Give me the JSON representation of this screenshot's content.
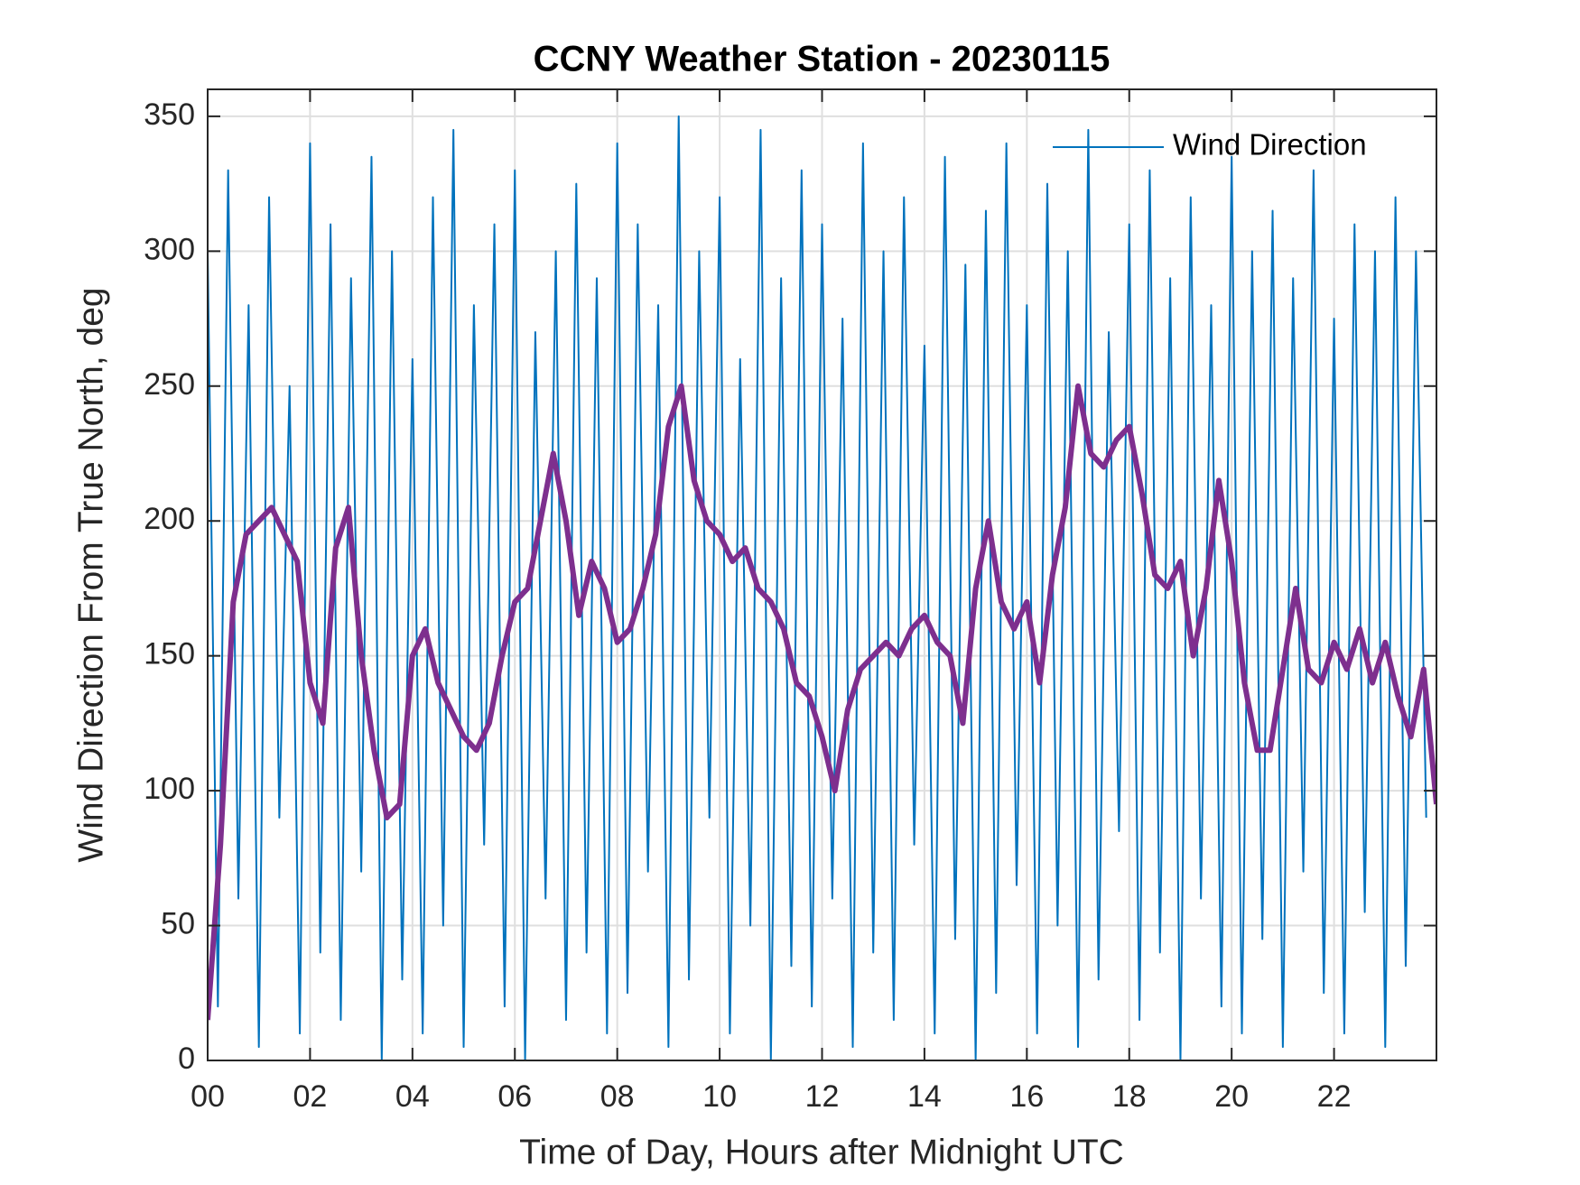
{
  "chart_data": {
    "type": "line",
    "title": "CCNY Weather Station - 20230115",
    "xlabel": "Time of Day, Hours after Midnight UTC",
    "ylabel": "Wind Direction From True North, deg",
    "xlim": [
      0,
      24
    ],
    "ylim": [
      0,
      360
    ],
    "xticks": [
      {
        "value": 0,
        "label": "00"
      },
      {
        "value": 2,
        "label": "02"
      },
      {
        "value": 4,
        "label": "04"
      },
      {
        "value": 6,
        "label": "06"
      },
      {
        "value": 8,
        "label": "08"
      },
      {
        "value": 10,
        "label": "10"
      },
      {
        "value": 12,
        "label": "12"
      },
      {
        "value": 14,
        "label": "14"
      },
      {
        "value": 16,
        "label": "16"
      },
      {
        "value": 18,
        "label": "18"
      },
      {
        "value": 20,
        "label": "20"
      },
      {
        "value": 22,
        "label": "22"
      }
    ],
    "yticks": [
      0,
      50,
      100,
      150,
      200,
      250,
      300,
      350
    ],
    "grid": true,
    "legend": "northeast",
    "series": [
      {
        "name": "Wind Direction",
        "color": "#0072bd",
        "width": 2,
        "x": [
          0,
          0.2,
          0.4,
          0.6,
          0.8,
          1,
          1.2,
          1.4,
          1.6,
          1.8,
          2,
          2.2,
          2.4,
          2.6,
          2.8,
          3,
          3.2,
          3.4,
          3.6,
          3.8,
          4,
          4.2,
          4.4,
          4.6,
          4.8,
          5,
          5.2,
          5.4,
          5.6,
          5.8,
          6,
          6.2,
          6.4,
          6.6,
          6.8,
          7,
          7.2,
          7.4,
          7.6,
          7.8,
          8,
          8.2,
          8.4,
          8.6,
          8.8,
          9,
          9.2,
          9.4,
          9.6,
          9.8,
          10,
          10.2,
          10.4,
          10.6,
          10.8,
          11,
          11.2,
          11.4,
          11.6,
          11.8,
          12,
          12.2,
          12.4,
          12.6,
          12.8,
          13,
          13.2,
          13.4,
          13.6,
          13.8,
          14,
          14.2,
          14.4,
          14.6,
          14.8,
          15,
          15.2,
          15.4,
          15.6,
          15.8,
          16,
          16.2,
          16.4,
          16.6,
          16.8,
          17,
          17.2,
          17.4,
          17.6,
          17.8,
          18,
          18.2,
          18.4,
          18.6,
          18.8,
          19,
          19.2,
          19.4,
          19.6,
          19.8,
          20,
          20.2,
          20.4,
          20.6,
          20.8,
          21,
          21.2,
          21.4,
          21.6,
          21.8,
          22,
          22.2,
          22.4,
          22.6,
          22.8,
          23,
          23.2,
          23.4,
          23.6,
          23.8
        ],
        "values": [
          300,
          20,
          330,
          60,
          280,
          5,
          320,
          90,
          250,
          10,
          340,
          40,
          310,
          15,
          290,
          70,
          335,
          0,
          300,
          30,
          260,
          10,
          320,
          50,
          345,
          5,
          280,
          80,
          310,
          20,
          330,
          0,
          270,
          60,
          300,
          15,
          325,
          40,
          290,
          10,
          340,
          25,
          310,
          70,
          280,
          5,
          350,
          30,
          300,
          90,
          320,
          10,
          260,
          50,
          345,
          0,
          290,
          35,
          330,
          20,
          310,
          60,
          275,
          5,
          340,
          40,
          300,
          15,
          320,
          80,
          265,
          10,
          335,
          45,
          295,
          0,
          315,
          25,
          340,
          65,
          280,
          10,
          325,
          50,
          300,
          5,
          345,
          30,
          270,
          85,
          310,
          15,
          330,
          40,
          290,
          0,
          320,
          60,
          280,
          20,
          335,
          10,
          300,
          45,
          315,
          5,
          290,
          70,
          330,
          25,
          275,
          10,
          310,
          55,
          300,
          5,
          320,
          35,
          300,
          90
        ]
      },
      {
        "color": "#7e2f8e",
        "width": 6,
        "x": [
          0,
          0.25,
          0.5,
          0.75,
          1,
          1.25,
          1.5,
          1.75,
          2,
          2.25,
          2.5,
          2.75,
          3,
          3.25,
          3.5,
          3.75,
          4,
          4.25,
          4.5,
          4.75,
          5,
          5.25,
          5.5,
          5.75,
          6,
          6.25,
          6.5,
          6.75,
          7,
          7.25,
          7.5,
          7.75,
          8,
          8.25,
          8.5,
          8.75,
          9,
          9.25,
          9.5,
          9.75,
          10,
          10.25,
          10.5,
          10.75,
          11,
          11.25,
          11.5,
          11.75,
          12,
          12.25,
          12.5,
          12.75,
          13,
          13.25,
          13.5,
          13.75,
          14,
          14.25,
          14.5,
          14.75,
          15,
          15.25,
          15.5,
          15.75,
          16,
          16.25,
          16.5,
          16.75,
          17,
          17.25,
          17.5,
          17.75,
          18,
          18.25,
          18.5,
          18.75,
          19,
          19.25,
          19.5,
          19.75,
          20,
          20.25,
          20.5,
          20.75,
          21,
          21.25,
          21.5,
          21.75,
          22,
          22.25,
          22.5,
          22.75,
          23,
          23.25,
          23.5,
          23.75,
          24
        ],
        "values": [
          15,
          80,
          170,
          195,
          200,
          205,
          195,
          185,
          140,
          125,
          190,
          205,
          150,
          115,
          90,
          95,
          150,
          160,
          140,
          130,
          120,
          115,
          125,
          150,
          170,
          175,
          200,
          225,
          200,
          165,
          185,
          175,
          155,
          160,
          175,
          195,
          235,
          250,
          215,
          200,
          195,
          185,
          190,
          175,
          170,
          160,
          140,
          135,
          120,
          100,
          130,
          145,
          150,
          155,
          150,
          160,
          165,
          155,
          150,
          125,
          175,
          200,
          170,
          160,
          170,
          140,
          180,
          205,
          250,
          225,
          220,
          230,
          235,
          210,
          180,
          175,
          185,
          150,
          175,
          215,
          185,
          140,
          115,
          115,
          145,
          175,
          145,
          140,
          155,
          145,
          160,
          140,
          155,
          135,
          120,
          145,
          95
        ]
      }
    ]
  }
}
